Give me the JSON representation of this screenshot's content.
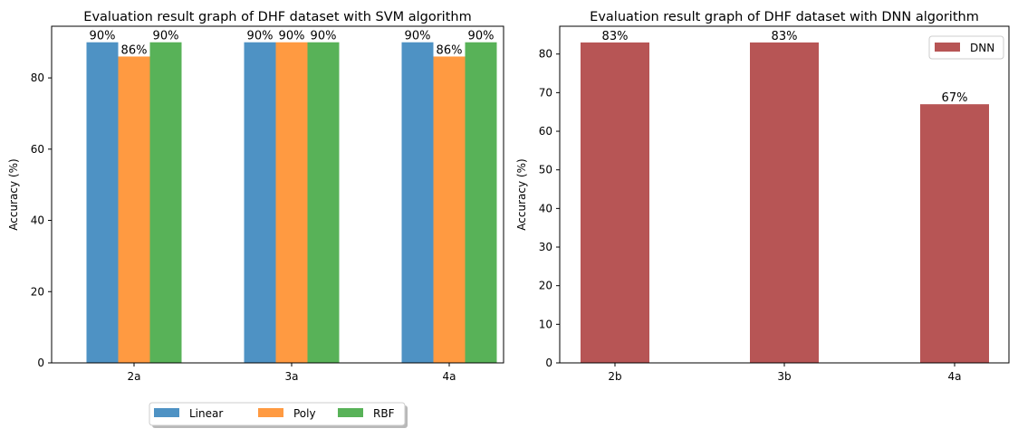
{
  "chart_data": [
    {
      "type": "bar",
      "title": "Evaluation result graph of DHF dataset with SVM algorithm",
      "xlabel": "",
      "ylabel": "Accuracy (%)",
      "categories": [
        "2a",
        "3a",
        "4a"
      ],
      "ylim": [
        0,
        94.5
      ],
      "yticks": [
        0,
        20,
        40,
        60,
        80
      ],
      "grid": false,
      "legend_placement": "bottom-center-outside",
      "series": [
        {
          "name": "Linear",
          "values": [
            90,
            90,
            90
          ],
          "labels": [
            "90%",
            "90%",
            "90%"
          ],
          "color": "#4e92c4"
        },
        {
          "name": "Poly",
          "values": [
            86,
            90,
            86
          ],
          "labels": [
            "86%",
            "90%",
            "86%"
          ],
          "color": "#ff9a41"
        },
        {
          "name": "RBF",
          "values": [
            90,
            90,
            90
          ],
          "labels": [
            "90%",
            "90%",
            "90%"
          ],
          "color": "#58b258"
        }
      ]
    },
    {
      "type": "bar",
      "title": "Evaluation result graph of DHF dataset with DNN algorithm",
      "xlabel": "",
      "ylabel": "Accuracy (%)",
      "categories": [
        "2b",
        "3b",
        "4a"
      ],
      "ylim": [
        0,
        87.2
      ],
      "yticks": [
        0,
        10,
        20,
        30,
        40,
        50,
        60,
        70,
        80
      ],
      "grid": false,
      "legend_placement": "top-right",
      "series": [
        {
          "name": "DNN",
          "values": [
            83,
            83,
            67
          ],
          "labels": [
            "83%",
            "83%",
            "67%"
          ],
          "color": "#b75555"
        }
      ]
    }
  ]
}
